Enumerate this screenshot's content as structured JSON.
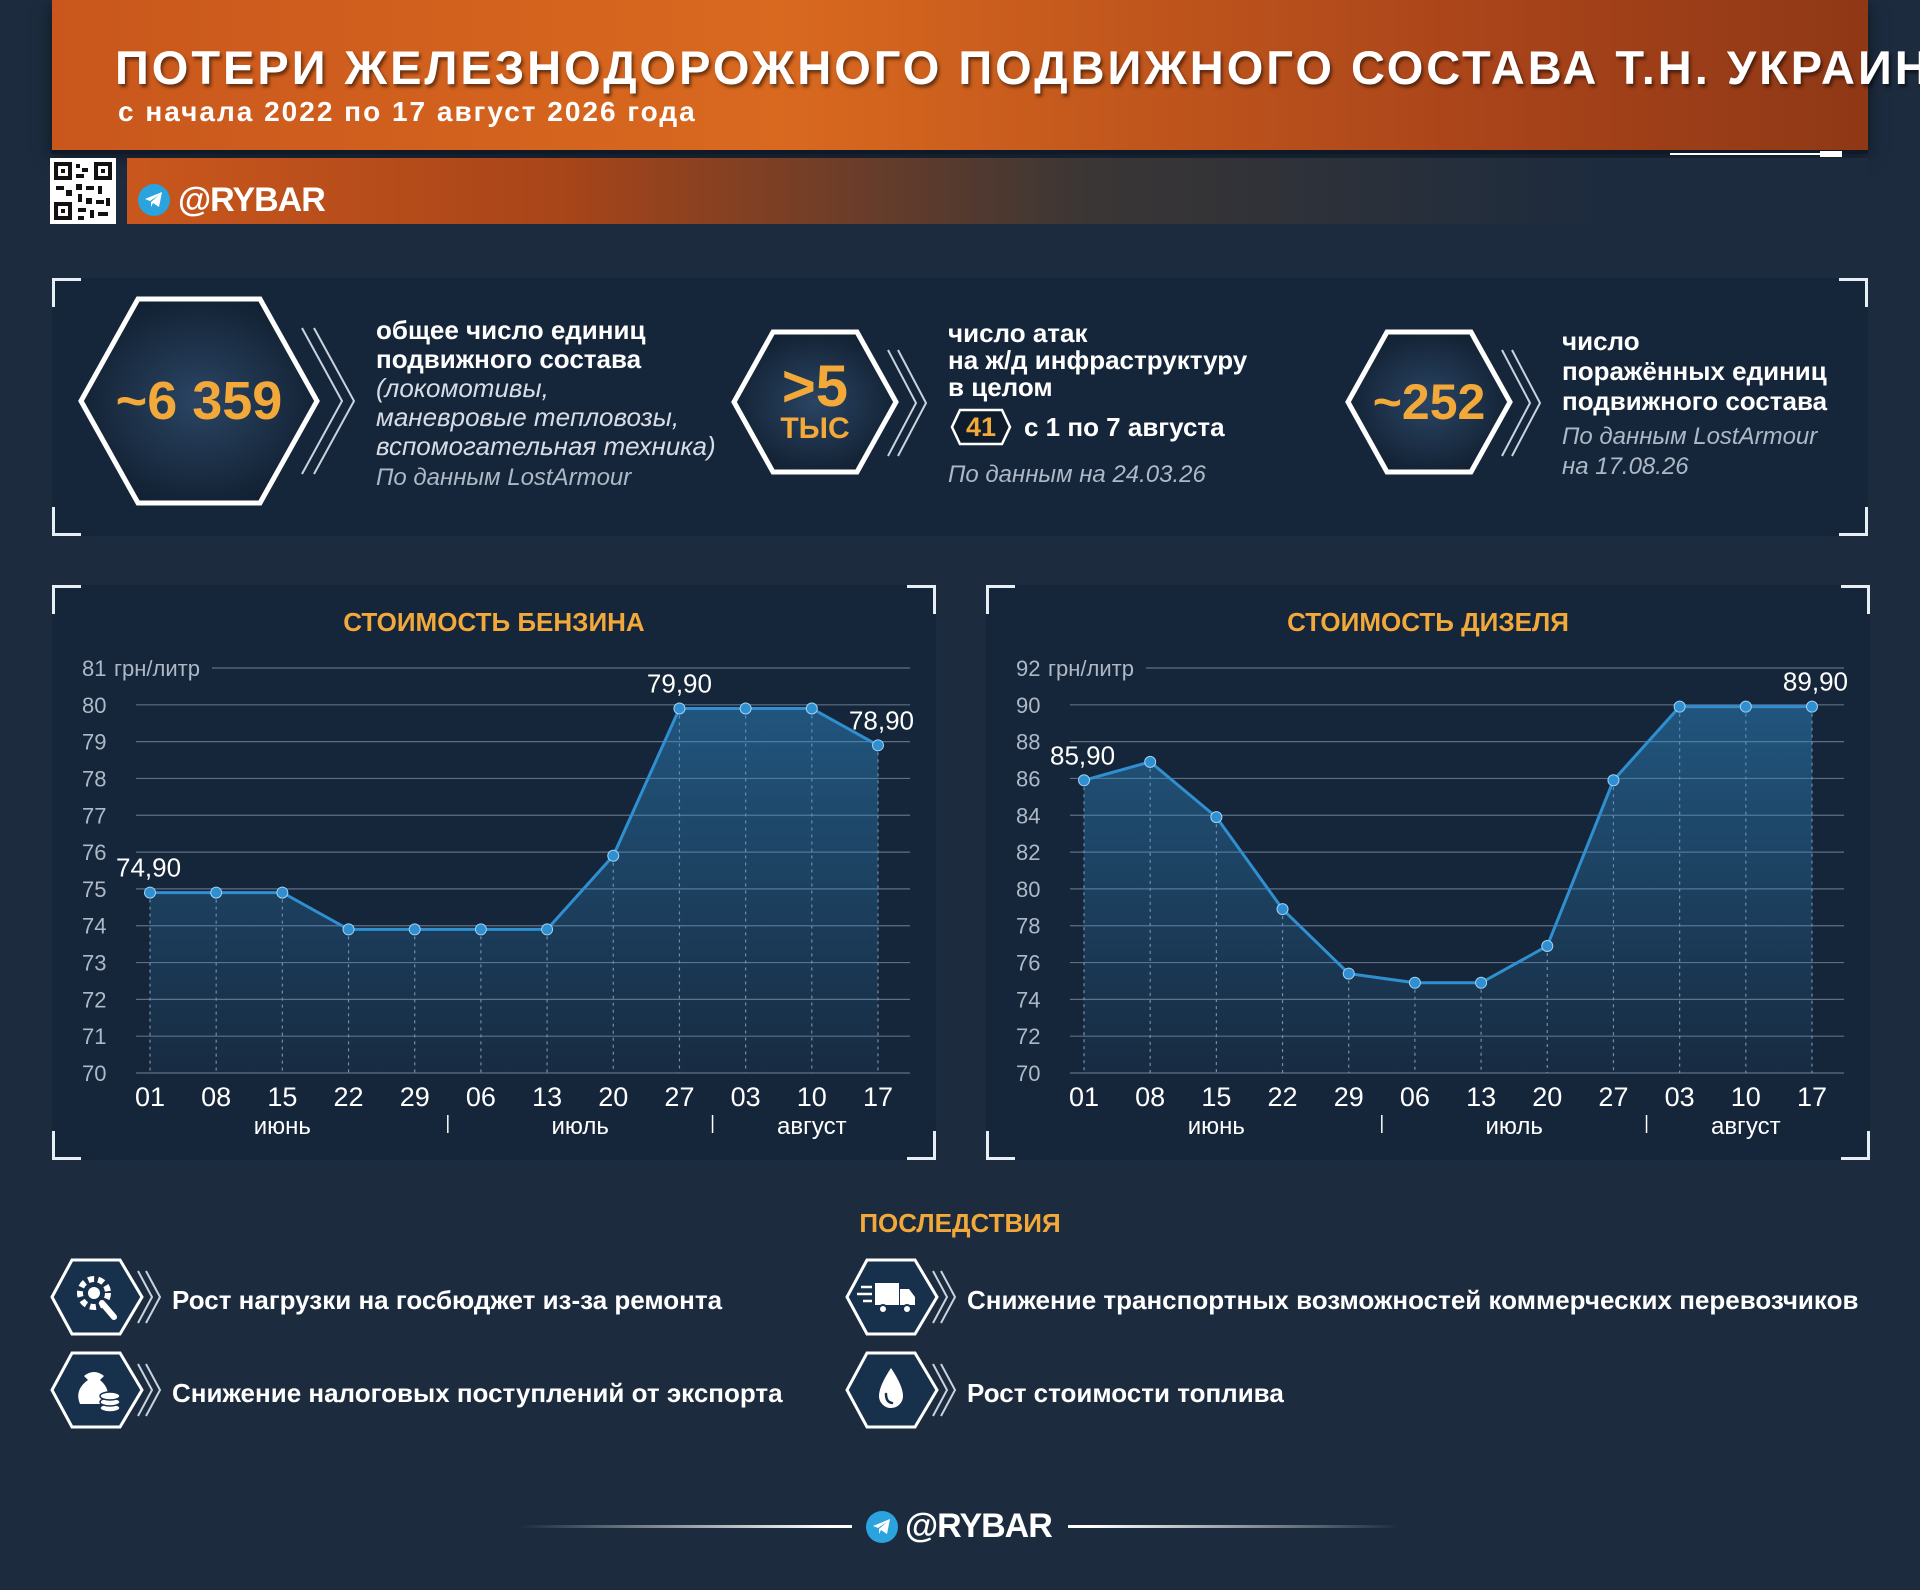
{
  "header": {
    "title": "ПОТЕРИ ЖЕЛЕЗНОДОРОЖНОГО ПОДВИЖНОГО СОСТАВА Т.Н. УКРАИНЫ",
    "subtitle": "с начала 2022 по 17 август 2026 года",
    "brand": "@RYBAR"
  },
  "stats": [
    {
      "value": "~6 359",
      "lines": [
        "общее число единиц",
        "подвижного состава"
      ],
      "italic_lines": [
        "(локомотивы,",
        "маневровые тепловозы,",
        "вспомогательная техника)"
      ],
      "source": "По данным LostArmour"
    },
    {
      "value_top": ">5",
      "value_bottom": "ТЫС",
      "lines": [
        "число атак",
        "на ж/д инфраструктуру",
        "в целом"
      ],
      "badge": "41",
      "badge_text": "с 1 по 7 августа",
      "source": "По данным на 24.03.26"
    },
    {
      "value": "~252",
      "lines": [
        "число",
        "поражённых единиц",
        "подвижного состава"
      ],
      "source_lines": [
        "По данным LostArmour",
        "на 17.08.26"
      ]
    }
  ],
  "chart_data": [
    {
      "type": "area",
      "title": "СТОИМОСТЬ БЕНЗИНА",
      "unit": "грн/литр",
      "x": [
        "01",
        "08",
        "15",
        "22",
        "29",
        "06",
        "13",
        "20",
        "27",
        "03",
        "10",
        "17"
      ],
      "months": [
        "июнь",
        "июль",
        "август"
      ],
      "values": [
        74.9,
        74.9,
        74.9,
        73.9,
        73.9,
        73.9,
        73.9,
        75.9,
        79.9,
        79.9,
        79.9,
        78.9
      ],
      "value_labels": [
        {
          "index": 0,
          "text": "74,90"
        },
        {
          "index": 8,
          "text": "79,90"
        },
        {
          "index": 11,
          "text": "78,90"
        }
      ],
      "yticks": [
        "81",
        "80",
        "79",
        "78",
        "77",
        "76",
        "75",
        "74",
        "73",
        "72",
        "71",
        "70"
      ],
      "ylim": [
        70,
        81
      ],
      "grid": true,
      "color": "#2f8fd0"
    },
    {
      "type": "area",
      "title": "СТОИМОСТЬ ДИЗЕЛЯ",
      "unit": "грн/литр",
      "x": [
        "01",
        "08",
        "15",
        "22",
        "29",
        "06",
        "13",
        "20",
        "27",
        "03",
        "10",
        "17"
      ],
      "months": [
        "июнь",
        "июль",
        "август"
      ],
      "values": [
        85.9,
        86.9,
        83.9,
        78.9,
        75.4,
        74.9,
        74.9,
        76.9,
        85.9,
        89.9,
        89.9,
        89.9
      ],
      "value_labels": [
        {
          "index": 0,
          "text": "85,90"
        },
        {
          "index": 11,
          "text": "89,90"
        }
      ],
      "yticks": [
        "92",
        "90",
        "88",
        "86",
        "84",
        "82",
        "80",
        "78",
        "76",
        "74",
        "72",
        "70"
      ],
      "ylim": [
        70,
        92
      ],
      "grid": true,
      "color": "#2f8fd0"
    }
  ],
  "consequences": {
    "title": "ПОСЛЕДСТВИЯ",
    "items": [
      {
        "icon": "gear-wrench-icon",
        "text": "Рост нагрузки на госбюджет из-за ремонта"
      },
      {
        "icon": "money-bag-coins-icon",
        "text": "Снижение налоговых поступлений от экспорта"
      },
      {
        "icon": "truck-icon",
        "text": "Снижение транспортных возможностей коммерческих перевозчиков"
      },
      {
        "icon": "fuel-drop-icon",
        "text": "Рост стоимости топлива"
      }
    ]
  },
  "footer": {
    "brand": "@RYBAR"
  },
  "colors": {
    "accent": "#f2a93a",
    "header": "#d9691f",
    "background": "#1c2b3e",
    "line": "#2f8fd0"
  }
}
